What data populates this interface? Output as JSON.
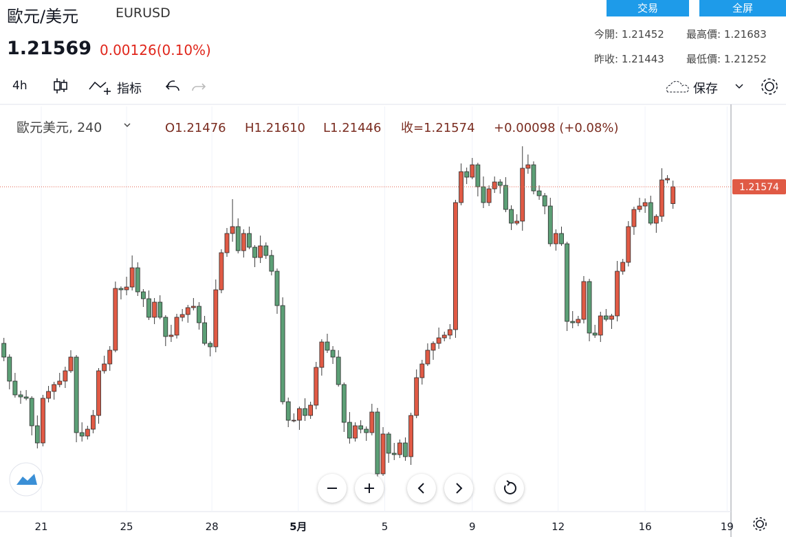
{
  "header": {
    "title": "歐元/美元",
    "symbol": "EURUSD",
    "price": "1.21569",
    "change": "0.00126(0.10%)",
    "buttons": [
      "交易",
      "全屏"
    ],
    "stats": [
      "今開: 1.21452",
      "最高價: 1.21683",
      "昨收: 1.21443",
      "最低價: 1.21252"
    ],
    "toolbar": {
      "interval": "4h",
      "indicators": "指标",
      "save": "保存"
    }
  },
  "chart_data": {
    "type": "candlestick",
    "legend": {
      "name": "歐元美元, 240",
      "open": "O1.21476",
      "high": "H1.21610",
      "low": "L1.21446",
      "close": "收=1.21574",
      "change": "+0.00098 (+0.08%)"
    },
    "up_color": "#e05a45",
    "down_color": "#5c9f76",
    "xlim": [
      -0.7,
      130.4
    ],
    "ylim": [
      1.19682,
      1.22042
    ],
    "grid": "x",
    "xticks": [
      {
        "value": 6.7,
        "label": "21"
      },
      {
        "value": 22,
        "label": "25"
      },
      {
        "value": 37.3,
        "label": "28"
      },
      {
        "value": 52.8,
        "label": "5月"
      },
      {
        "value": 68.3,
        "label": "5"
      },
      {
        "value": 84,
        "label": "9"
      },
      {
        "value": 99.4,
        "label": "12"
      },
      {
        "value": 115,
        "label": "16"
      },
      {
        "value": 129.7,
        "label": "19"
      }
    ],
    "open": [
      1.20662,
      1.20582,
      1.20442,
      1.20362,
      1.2035,
      1.20342,
      1.20182,
      1.20082,
      1.20342,
      1.20382,
      1.20422,
      1.20442,
      1.20502,
      1.20582,
      1.20142,
      1.20122,
      1.20162,
      1.20242,
      1.20502,
      1.20542,
      1.20622,
      1.20982,
      1.20974,
      1.2099,
      1.21102,
      1.20962,
      1.20922,
      1.20814,
      1.20902,
      1.20814,
      1.20702,
      1.2071,
      1.20814,
      1.2083,
      1.2087,
      1.20878,
      1.20782,
      1.20662,
      1.20642,
      1.20974,
      1.2119,
      1.21302,
      1.21342,
      1.21202,
      1.21302,
      1.21222,
      1.21162,
      1.2123,
      1.21174,
      1.21082,
      1.20882,
      1.20322,
      1.20214,
      1.20214,
      1.20282,
      1.20242,
      1.20302,
      1.20522,
      1.2067,
      1.20622,
      1.20582,
      1.20422,
      1.20202,
      1.2011,
      1.20182,
      1.20162,
      1.20142,
      1.20262,
      1.19902,
      1.20134,
      1.20022,
      1.20014,
      1.20082,
      1.20002,
      1.20242,
      1.20462,
      1.20542,
      1.20622,
      1.20662,
      1.20694,
      1.2071,
      1.20742,
      1.21482,
      1.21662,
      1.2163,
      1.21702,
      1.21574,
      1.21482,
      1.21562,
      1.21602,
      1.21582,
      1.21442,
      1.21362,
      1.21374,
      1.21682,
      1.21702,
      1.2155,
      1.21522,
      1.21462,
      1.21242,
      1.21302,
      1.21242,
      1.2079,
      1.20782,
      1.20802,
      1.21022,
      1.20722,
      1.2071,
      1.20822,
      1.20802,
      1.20822,
      1.21082,
      1.21134,
      1.21342,
      1.21442,
      1.21462,
      1.21482,
      1.21362,
      1.21402,
      1.21614,
      1.21476
    ],
    "high": [
      1.20694,
      1.20598,
      1.2049,
      1.20386,
      1.2039,
      1.20354,
      1.20242,
      1.20362,
      1.20414,
      1.20438,
      1.2049,
      1.20526,
      1.20622,
      1.20594,
      1.20202,
      1.20182,
      1.20274,
      1.20518,
      1.2059,
      1.20646,
      1.21022,
      1.20994,
      1.2105,
      1.21174,
      1.21134,
      1.20978,
      1.2097,
      1.20926,
      1.20942,
      1.20826,
      1.2077,
      1.20834,
      1.20862,
      1.20886,
      1.20926,
      1.20902,
      1.20822,
      1.20674,
      1.21034,
      1.2121,
      1.21334,
      1.21502,
      1.2139,
      1.21326,
      1.21342,
      1.21234,
      1.2129,
      1.2125,
      1.21206,
      1.21098,
      1.2093,
      1.20346,
      1.20254,
      1.20294,
      1.20342,
      1.20322,
      1.20554,
      1.20686,
      1.20718,
      1.20646,
      1.20622,
      1.20434,
      1.20262,
      1.20202,
      1.20214,
      1.20178,
      1.2031,
      1.20286,
      1.20174,
      1.20146,
      1.20082,
      1.20102,
      1.20114,
      1.20258,
      1.2051,
      1.20566,
      1.20662,
      1.20674,
      1.20754,
      1.2073,
      1.20774,
      1.21498,
      1.2171,
      1.21686,
      1.21742,
      1.21714,
      1.21634,
      1.21582,
      1.21634,
      1.21618,
      1.2163,
      1.21466,
      1.21414,
      1.2181,
      1.21762,
      1.21722,
      1.21582,
      1.21538,
      1.2151,
      1.21326,
      1.21342,
      1.21254,
      1.2085,
      1.20822,
      1.21054,
      1.21038,
      1.2077,
      1.20846,
      1.20862,
      1.20834,
      1.21142,
      1.21154,
      1.21374,
      1.21458,
      1.2151,
      1.21506,
      1.21522,
      1.21414,
      1.21682,
      1.21642,
      1.2161
    ],
    "low": [
      1.20558,
      1.20394,
      1.20346,
      1.2031,
      1.2033,
      1.20126,
      1.2005,
      1.20062,
      1.20318,
      1.20334,
      1.20406,
      1.20402,
      1.2049,
      1.20086,
      1.2009,
      1.20102,
      1.20138,
      1.20194,
      1.20486,
      1.20502,
      1.2061,
      1.20918,
      1.20942,
      1.2097,
      1.20938,
      1.20874,
      1.20798,
      1.20774,
      1.20802,
      1.20646,
      1.2067,
      1.2069,
      1.2079,
      1.20782,
      1.20854,
      1.20742,
      1.2065,
      1.20586,
      1.2061,
      1.20954,
      1.21166,
      1.21254,
      1.21186,
      1.21162,
      1.2121,
      1.21106,
      1.2113,
      1.21154,
      1.21058,
      1.20834,
      1.20306,
      1.20174,
      1.20202,
      1.20158,
      1.2021,
      1.20222,
      1.20278,
      1.20474,
      1.20606,
      1.20542,
      1.2041,
      1.20146,
      1.20078,
      1.2009,
      1.20138,
      1.20094,
      1.20126,
      1.19862,
      1.1989,
      1.19966,
      1.19982,
      1.19994,
      1.19978,
      1.19954,
      1.20226,
      1.20422,
      1.2053,
      1.20566,
      1.2063,
      1.20674,
      1.20686,
      1.20694,
      1.21466,
      1.2159,
      1.21618,
      1.21518,
      1.2145,
      1.21462,
      1.21538,
      1.21534,
      1.21426,
      1.21322,
      1.2135,
      1.21318,
      1.2165,
      1.2153,
      1.21498,
      1.21414,
      1.21226,
      1.21202,
      1.2123,
      1.20734,
      1.2075,
      1.20762,
      1.20778,
      1.20674,
      1.20694,
      1.2067,
      1.2079,
      1.20746,
      1.2079,
      1.21062,
      1.2111,
      1.21294,
      1.21426,
      1.21422,
      1.2135,
      1.21306,
      1.2137,
      1.21594,
      1.21446
    ],
    "close": [
      1.20582,
      1.20442,
      1.20362,
      1.2035,
      1.20342,
      1.20182,
      1.20082,
      1.20342,
      1.20382,
      1.20422,
      1.20442,
      1.20502,
      1.20582,
      1.20142,
      1.20122,
      1.20162,
      1.20242,
      1.20502,
      1.20542,
      1.20622,
      1.20982,
      1.20974,
      1.2099,
      1.21102,
      1.20962,
      1.20922,
      1.20814,
      1.20902,
      1.20814,
      1.20702,
      1.2071,
      1.20814,
      1.2083,
      1.2087,
      1.20878,
      1.20782,
      1.20662,
      1.20642,
      1.20974,
      1.2119,
      1.21302,
      1.21342,
      1.21202,
      1.21302,
      1.21222,
      1.21162,
      1.2123,
      1.21174,
      1.21082,
      1.20882,
      1.20322,
      1.20214,
      1.20214,
      1.20282,
      1.20242,
      1.20302,
      1.20522,
      1.2067,
      1.20622,
      1.20582,
      1.20422,
      1.20202,
      1.2011,
      1.20182,
      1.20162,
      1.20142,
      1.20262,
      1.19902,
      1.20134,
      1.20022,
      1.20014,
      1.20082,
      1.20002,
      1.20242,
      1.20462,
      1.20542,
      1.20622,
      1.20662,
      1.20694,
      1.2071,
      1.20742,
      1.21482,
      1.21662,
      1.2163,
      1.21702,
      1.21574,
      1.21482,
      1.21562,
      1.21602,
      1.21582,
      1.21442,
      1.21362,
      1.21374,
      1.21682,
      1.21702,
      1.2155,
      1.21522,
      1.21462,
      1.21242,
      1.21302,
      1.21242,
      1.2079,
      1.20782,
      1.20802,
      1.21022,
      1.20722,
      1.2071,
      1.20822,
      1.20802,
      1.20822,
      1.21082,
      1.21134,
      1.21342,
      1.21442,
      1.21462,
      1.21482,
      1.21362,
      1.21402,
      1.21614,
      1.21622,
      1.21574
    ]
  }
}
